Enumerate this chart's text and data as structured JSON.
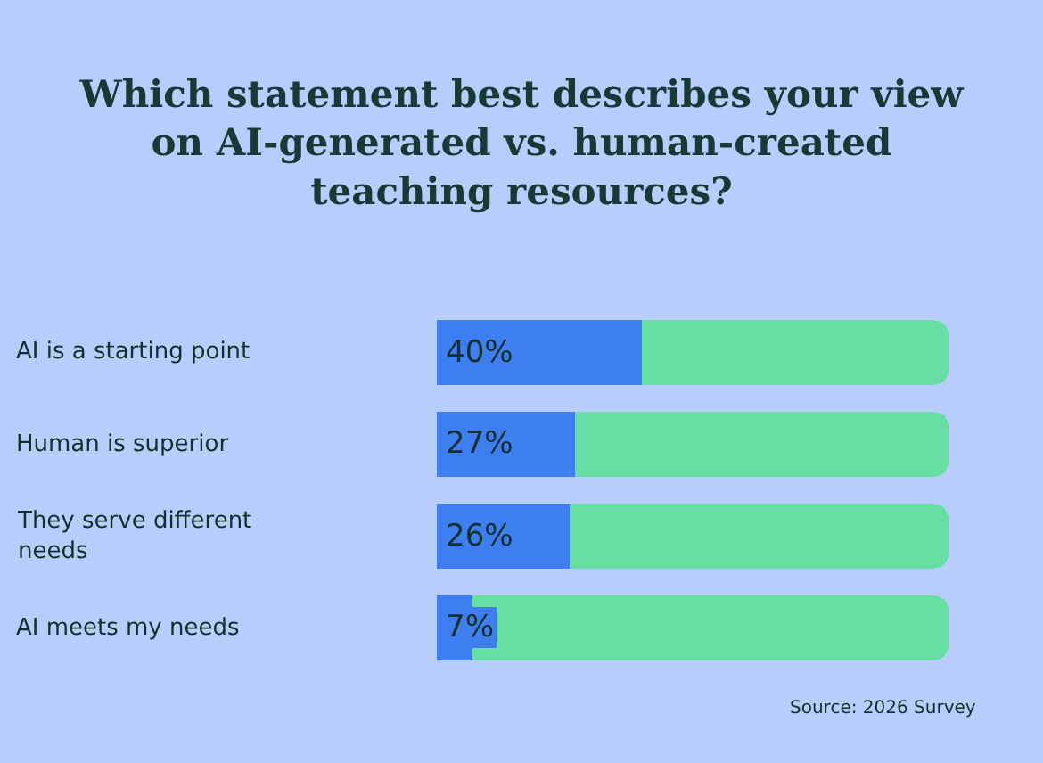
{
  "chart_data": {
    "type": "bar",
    "orientation": "horizontal",
    "stacked": true,
    "title": "Which statement best describes your view on AI-generated vs. human-created teaching resources?",
    "categories": [
      "AI is a starting point",
      "Human is superior",
      "They serve different needs",
      "AI meets my needs"
    ],
    "series": [
      {
        "color": "#3d7ef0",
        "values": [
          40,
          27,
          26,
          7
        ],
        "value_labels": [
          "40%",
          "27%",
          "26%",
          "7%"
        ]
      },
      {
        "color": "#66dfa2",
        "values": [
          60,
          73,
          74,
          93
        ]
      }
    ],
    "xlim": [
      0,
      100
    ],
    "tick_labels": false,
    "grid": false,
    "annotations": [
      "Source: 2026 Survey"
    ]
  }
}
